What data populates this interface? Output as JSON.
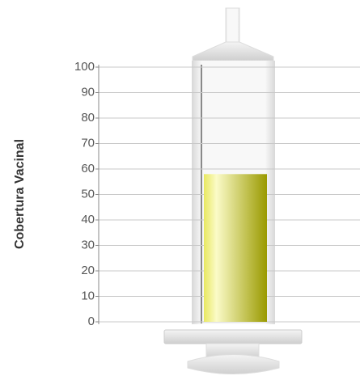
{
  "chart_data": {
    "type": "bar",
    "y_label": "Cobertura Vacinal",
    "values": [
      58
    ],
    "color": "#9a9a00",
    "ylim": [
      0,
      100
    ],
    "yticks": [
      0,
      10,
      20,
      30,
      40,
      50,
      60,
      70,
      80,
      90,
      100
    ],
    "grid": true
  }
}
